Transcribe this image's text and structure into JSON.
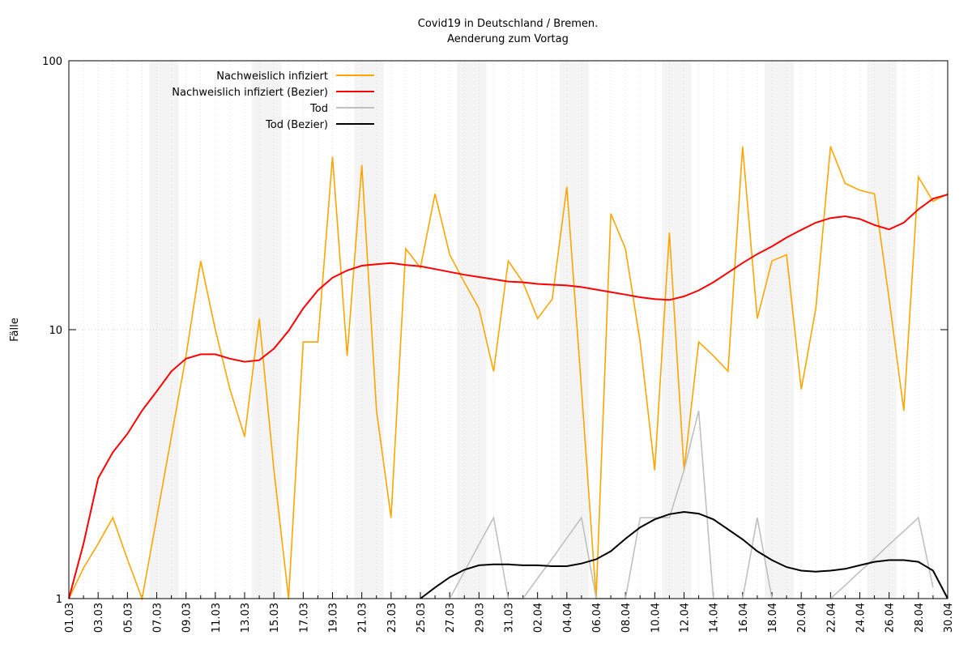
{
  "chart_data": {
    "type": "line",
    "title": "Covid19 in Deutschland / Bremen.",
    "subtitle": "Aenderung zum Vortag",
    "ylabel": "Fälle",
    "log_scale": true,
    "grid": true,
    "legend": "top-left",
    "ylim": [
      1,
      100
    ],
    "yticks": [
      1,
      10,
      100
    ],
    "categories": [
      "01.03",
      null,
      "03.03",
      null,
      "05.03",
      null,
      "07.03",
      null,
      "09.03",
      null,
      "11.03",
      null,
      "13.03",
      null,
      "15.03",
      null,
      "17.03",
      null,
      "19.03",
      null,
      "21.03",
      null,
      "23.03",
      null,
      "25.03",
      null,
      "27.03",
      null,
      "29.03",
      null,
      "31.03",
      null,
      "02.04",
      null,
      "04.04",
      null,
      "06.04",
      null,
      "08.04",
      null,
      "10.04",
      null,
      "12.04",
      null,
      "14.04",
      null,
      "16.04",
      null,
      "18.04",
      null,
      "20.04",
      null,
      "22.04",
      null,
      "24.04",
      null,
      "26.04",
      null,
      "28.04",
      null,
      "30.04"
    ],
    "series": [
      {
        "name": "Nachweislich infiziert",
        "color": "#ffa500",
        "values": [
          1,
          1.3,
          1.6,
          2,
          1.4,
          1,
          2,
          4,
          8,
          18,
          10,
          6,
          4,
          11,
          3,
          1,
          9,
          9,
          44,
          8,
          41,
          5,
          2,
          20,
          17,
          32,
          19,
          15,
          12,
          7,
          18,
          15,
          11,
          13,
          34,
          6,
          1,
          27,
          20,
          9,
          3,
          23,
          3,
          9,
          8,
          7,
          48,
          11,
          18,
          19,
          6,
          12,
          48,
          35,
          33,
          32,
          13,
          5,
          37,
          30,
          32
        ]
      },
      {
        "name": "Nachweislich infiziert (Bezier)",
        "color": "#ff0000",
        "values": [
          1,
          1.6,
          2.8,
          3.5,
          4.1,
          5,
          5.9,
          7,
          7.8,
          8.1,
          8.1,
          7.8,
          7.6,
          7.7,
          8.5,
          9.9,
          12,
          14,
          15.6,
          16.6,
          17.3,
          17.5,
          17.7,
          17.4,
          17.2,
          16.8,
          16.4,
          16,
          15.7,
          15.4,
          15.1,
          15,
          14.8,
          14.7,
          14.6,
          14.4,
          14.1,
          13.8,
          13.5,
          13.2,
          13,
          12.9,
          13.3,
          14,
          15,
          16.3,
          17.7,
          19.1,
          20.4,
          22,
          23.5,
          25,
          26,
          26.4,
          25.8,
          24.5,
          23.6,
          25,
          28,
          30.7,
          31.8
        ]
      },
      {
        "name": "Tod",
        "color": "#c0c0c0",
        "values": [
          null,
          null,
          null,
          null,
          null,
          null,
          null,
          null,
          null,
          null,
          null,
          null,
          null,
          null,
          null,
          null,
          null,
          null,
          null,
          null,
          null,
          null,
          null,
          null,
          null,
          null,
          1,
          1.26,
          1.59,
          2,
          1,
          1,
          1.19,
          1.41,
          1.68,
          2,
          1,
          1,
          1,
          2,
          2,
          2,
          3,
          5,
          1,
          null,
          1,
          2,
          1,
          null,
          null,
          null,
          1,
          1.12,
          1.26,
          1.41,
          1.59,
          1.78,
          2,
          1.1,
          null
        ]
      },
      {
        "name": "Tod (Bezier)",
        "color": "#000000",
        "values": [
          null,
          null,
          null,
          null,
          null,
          null,
          null,
          null,
          null,
          null,
          null,
          null,
          null,
          null,
          null,
          null,
          null,
          null,
          null,
          null,
          null,
          null,
          null,
          null,
          1,
          1.1,
          1.2,
          1.28,
          1.33,
          1.34,
          1.34,
          1.33,
          1.33,
          1.32,
          1.32,
          1.35,
          1.4,
          1.5,
          1.67,
          1.84,
          1.97,
          2.06,
          2.1,
          2.07,
          1.97,
          1.81,
          1.66,
          1.5,
          1.39,
          1.31,
          1.27,
          1.26,
          1.27,
          1.29,
          1.33,
          1.37,
          1.39,
          1.39,
          1.37,
          1.27,
          1
        ]
      }
    ]
  }
}
